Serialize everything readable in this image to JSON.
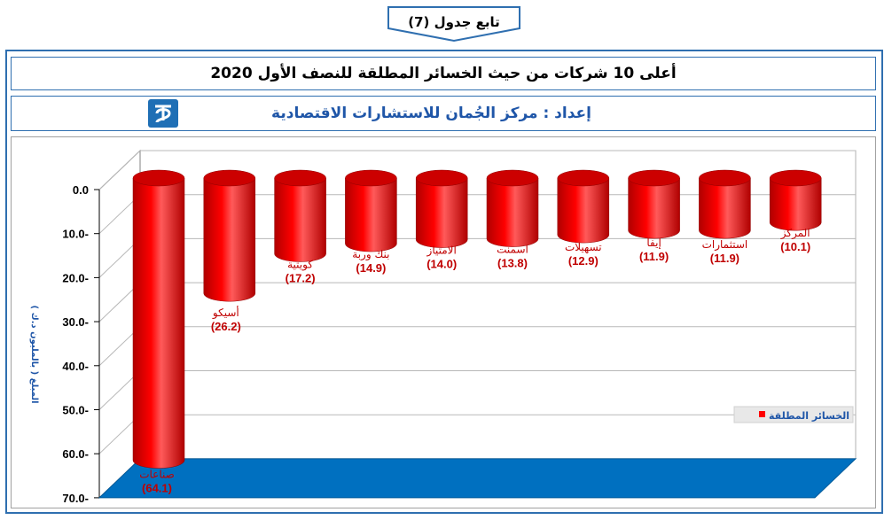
{
  "header": {
    "banner": "تابع جدول (7)",
    "title": "أعلى 10 شركات من حيث الخسائر المطلقة للنصف الأول 2020",
    "credit": "إعداد : مركز الجُمان للاستشارات الاقتصادية"
  },
  "chart_data": {
    "type": "bar",
    "title": "أعلى 10 شركات من حيث الخسائر المطلقة للنصف الأول 2020",
    "ylabel": "المبلغ ( بالمليون د.ك )",
    "ylim": [
      0,
      -70
    ],
    "yticks": [
      "0.0",
      "10.0-",
      "20.0-",
      "30.0-",
      "40.0-",
      "50.0-",
      "60.0-",
      "70.0-"
    ],
    "categories": [
      "صناعات",
      "أسيكو",
      "كويتية",
      "بنك وربة",
      "الامتياز",
      "اسمنت",
      "تسهيلات",
      "إيفا",
      "استثمارات",
      "المركز"
    ],
    "values": [
      -64.1,
      -26.2,
      -17.2,
      -14.9,
      -14.0,
      -13.8,
      -12.9,
      -11.9,
      -11.9,
      -10.1
    ],
    "data_labels": [
      "(64.1)",
      "(26.2)",
      "(17.2)",
      "(14.9)",
      "(14.0)",
      "(13.8)",
      "(12.9)",
      "(11.9)",
      "(11.9)",
      "(10.1)"
    ],
    "series": [
      {
        "name": "الخسائر المطلقة",
        "color": "#ff0000"
      }
    ],
    "legend_position": "right",
    "grid": true,
    "colors": {
      "bar": "#ff0000",
      "bar_dark": "#b00000",
      "floor": "#0070c0",
      "label": "#c00000"
    }
  }
}
